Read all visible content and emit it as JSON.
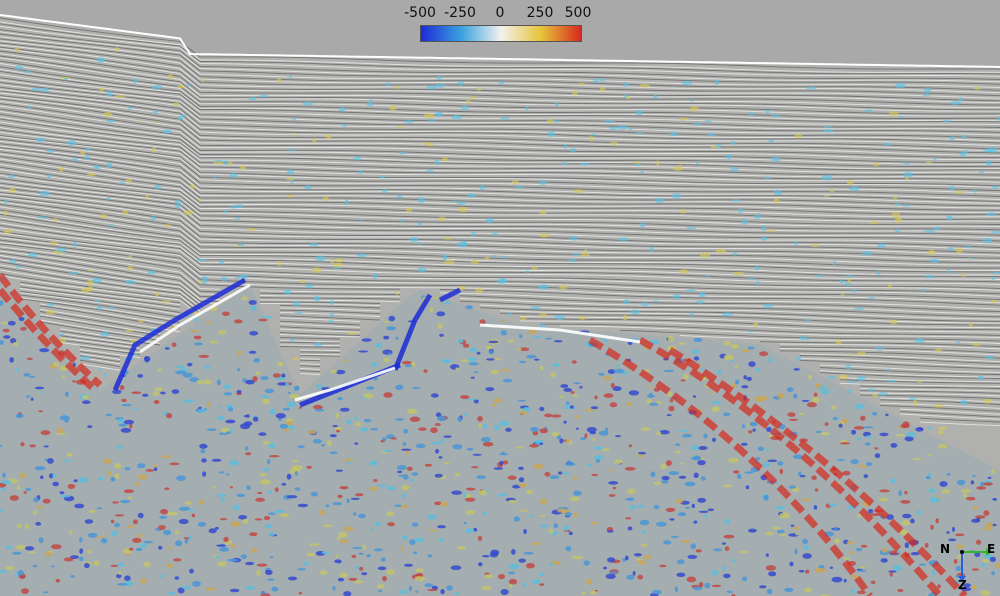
{
  "colorbar": {
    "ticks": [
      "-500",
      "-250",
      "0",
      "250",
      "500"
    ],
    "min": -500,
    "max": 500,
    "colors": [
      "#1c2bd6",
      "#3aa0e0",
      "#f2f2ee",
      "#e6c43a",
      "#d62a1e"
    ]
  },
  "axes": {
    "north": "N",
    "east": "E",
    "down": "Z",
    "east_color": "#2fb52f",
    "down_color": "#2b5fe0"
  },
  "colors": {
    "background": "#a9a9a9",
    "seismic_gray": "#b0b0ae"
  }
}
